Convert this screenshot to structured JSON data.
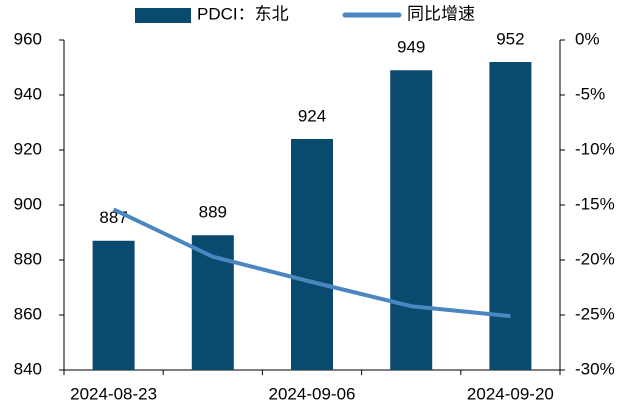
{
  "chart_data": {
    "type": "bar_line",
    "categories": [
      "2024-08-23",
      null,
      "2024-09-06",
      null,
      "2024-09-20"
    ],
    "series": [
      {
        "name": "PDCI：东北",
        "type": "bar",
        "color": "#0b4a6f",
        "values": [
          887,
          889,
          924,
          949,
          952
        ]
      },
      {
        "name": "同比增速",
        "type": "line",
        "axis": "y2",
        "color": "#4a86c0",
        "values": [
          -15.4,
          -19.7,
          -22.0,
          -24.2,
          -25.1
        ]
      }
    ],
    "ylim": [
      840,
      960
    ],
    "yticks": [
      840,
      860,
      880,
      900,
      920,
      940,
      960
    ],
    "y2lim": [
      -30,
      0
    ],
    "y2ticks": [
      {
        "value": -30,
        "label": "-30%"
      },
      {
        "value": -25,
        "label": "-25%"
      },
      {
        "value": -20,
        "label": "-20%"
      },
      {
        "value": -15,
        "label": "-15%"
      },
      {
        "value": -10,
        "label": "-10%"
      },
      {
        "value": -5,
        "label": "-5%"
      },
      {
        "value": 0,
        "label": "0%"
      }
    ],
    "legend": "top",
    "grid": false
  }
}
